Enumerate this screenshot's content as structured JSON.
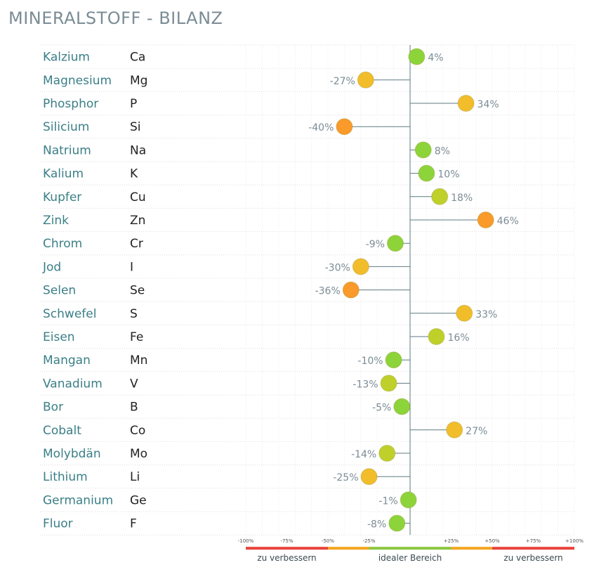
{
  "chart_data": {
    "type": "scatter",
    "title": "MINERALSTOFF - BILANZ",
    "xlim": [
      -100,
      100
    ],
    "ticks": [
      "-100%",
      "-75%",
      "-50%",
      "-25%",
      "+25%",
      "+50%",
      "+75%",
      "+100%"
    ],
    "tick_values": [
      -100,
      -75,
      -50,
      -25,
      25,
      50,
      75,
      100
    ],
    "bands": [
      {
        "label": "zu verbessern",
        "range": [
          -100,
          -50
        ],
        "color": "#e8433a"
      },
      {
        "label": "idealer Bereich",
        "range": [
          -25,
          25
        ],
        "color": "#8cc63f"
      },
      {
        "label": "zu verbessern",
        "range": [
          50,
          100
        ],
        "color": "#e8433a"
      }
    ],
    "band_transitions": [
      {
        "range": [
          -50,
          -25
        ],
        "color": "#f5a623"
      },
      {
        "range": [
          25,
          50
        ],
        "color": "#f5a623"
      }
    ],
    "rows": [
      {
        "name": "Kalzium",
        "symbol": "Ca",
        "value": 4,
        "label": "4%"
      },
      {
        "name": "Magnesium",
        "symbol": "Mg",
        "value": -27,
        "label": "-27%"
      },
      {
        "name": "Phosphor",
        "symbol": "P",
        "value": 34,
        "label": "34%"
      },
      {
        "name": "Silicium",
        "symbol": "Si",
        "value": -40,
        "label": "-40%"
      },
      {
        "name": "Natrium",
        "symbol": "Na",
        "value": 8,
        "label": "8%"
      },
      {
        "name": "Kalium",
        "symbol": "K",
        "value": 10,
        "label": "10%"
      },
      {
        "name": "Kupfer",
        "symbol": "Cu",
        "value": 18,
        "label": "18%"
      },
      {
        "name": "Zink",
        "symbol": "Zn",
        "value": 46,
        "label": "46%"
      },
      {
        "name": "Chrom",
        "symbol": "Cr",
        "value": -9,
        "label": "-9%"
      },
      {
        "name": "Jod",
        "symbol": "I",
        "value": -30,
        "label": "-30%"
      },
      {
        "name": "Selen",
        "symbol": "Se",
        "value": -36,
        "label": "-36%"
      },
      {
        "name": "Schwefel",
        "symbol": "S",
        "value": 33,
        "label": "33%"
      },
      {
        "name": "Eisen",
        "symbol": "Fe",
        "value": 16,
        "label": "16%"
      },
      {
        "name": "Mangan",
        "symbol": "Mn",
        "value": -10,
        "label": "-10%"
      },
      {
        "name": "Vanadium",
        "symbol": "V",
        "value": -13,
        "label": "-13%"
      },
      {
        "name": "Bor",
        "symbol": "B",
        "value": -5,
        "label": "-5%"
      },
      {
        "name": "Cobalt",
        "symbol": "Co",
        "value": 27,
        "label": "27%"
      },
      {
        "name": "Molybdän",
        "symbol": "Mo",
        "value": -14,
        "label": "-14%"
      },
      {
        "name": "Lithium",
        "symbol": "Li",
        "value": -25,
        "label": "-25%"
      },
      {
        "name": "Germanium",
        "symbol": "Ge",
        "value": -1,
        "label": "-1%"
      },
      {
        "name": "Fluor",
        "symbol": "F",
        "value": -8,
        "label": "-8%"
      }
    ],
    "colors": {
      "name_text": "#3b7f87",
      "value_text": "#7b8c95",
      "stem": "#5f7a82",
      "green": "#8cd43a",
      "yellow_green": "#bfd02a",
      "yellow": "#f2bd2a",
      "orange": "#fa9a2a"
    }
  }
}
